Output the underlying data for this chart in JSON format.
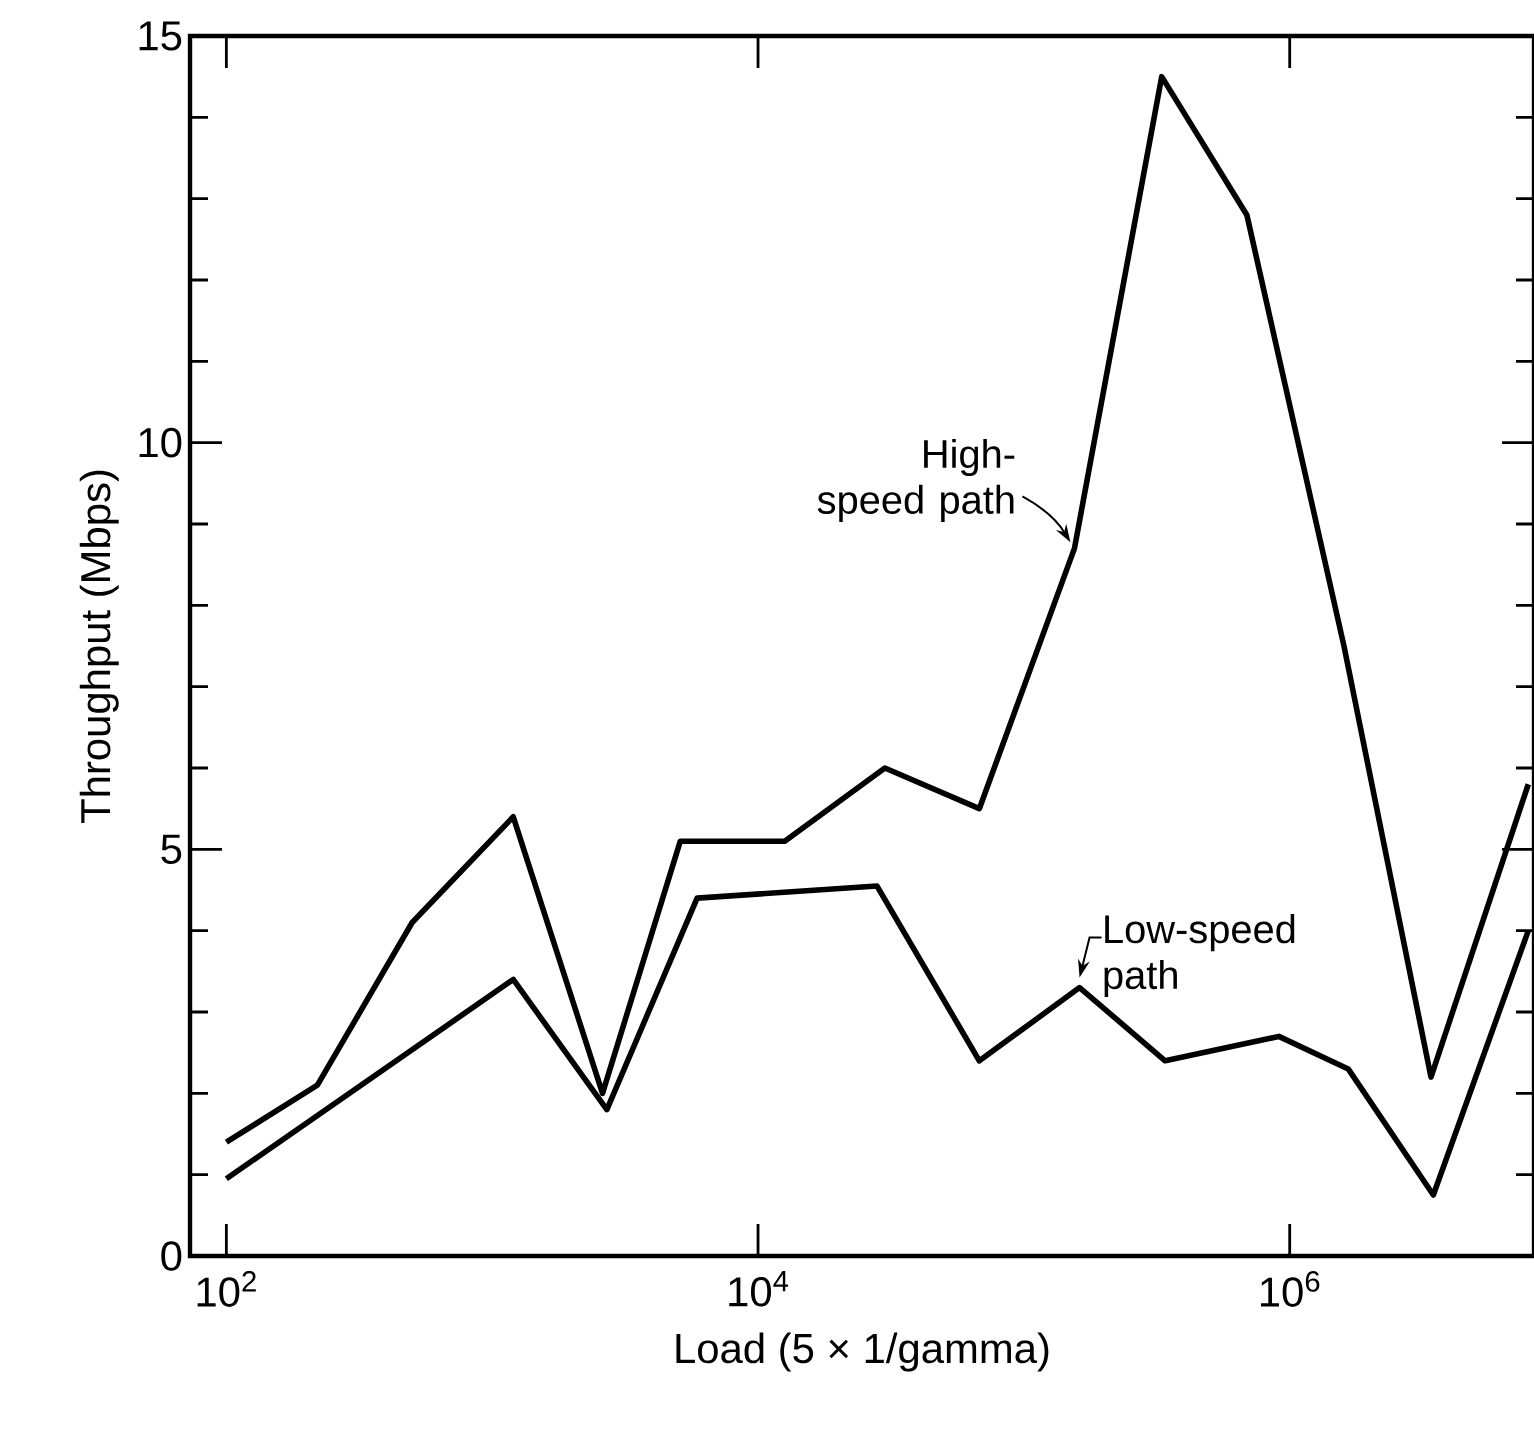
{
  "chart_data": {
    "type": "line",
    "log": "x",
    "xlabel": "Load (5 × 1/gamma)",
    "ylabel": "Throughput (Mbps)",
    "xlim": [
      73,
      8300000
    ],
    "xticks": [
      {
        "value": 100,
        "label": "10$^{2}$"
      },
      {
        "value": 10000,
        "label": "10$^{4}$"
      },
      {
        "value": 1000000,
        "label": "10$^{6}$"
      }
    ],
    "ylim": [
      0,
      15
    ],
    "yticks": [
      0,
      5,
      10,
      15
    ],
    "series": [
      {
        "name": "High-speed path",
        "color": "#000000",
        "x": [
          100,
          220,
          500,
          1200,
          2600,
          5100,
          12600,
          30000,
          68000,
          155000,
          330000,
          690000,
          1600000,
          3400000,
          7900000
        ],
        "values": [
          1.4,
          2.1,
          4.1,
          5.4,
          2.0,
          5.1,
          5.1,
          6.0,
          5.5,
          8.7,
          14.5,
          12.8,
          7.5,
          2.2,
          5.8
        ]
      },
      {
        "name": "Low-speed path",
        "color": "#000000",
        "x": [
          100,
          1200,
          2700,
          5900,
          28000,
          68000,
          162000,
          340000,
          910000,
          1660000,
          3470000,
          7900000
        ],
        "values": [
          0.95,
          3.4,
          1.8,
          4.4,
          4.55,
          2.4,
          3.3,
          2.4,
          2.7,
          2.3,
          0.75,
          4.0
        ]
      }
    ]
  }
}
